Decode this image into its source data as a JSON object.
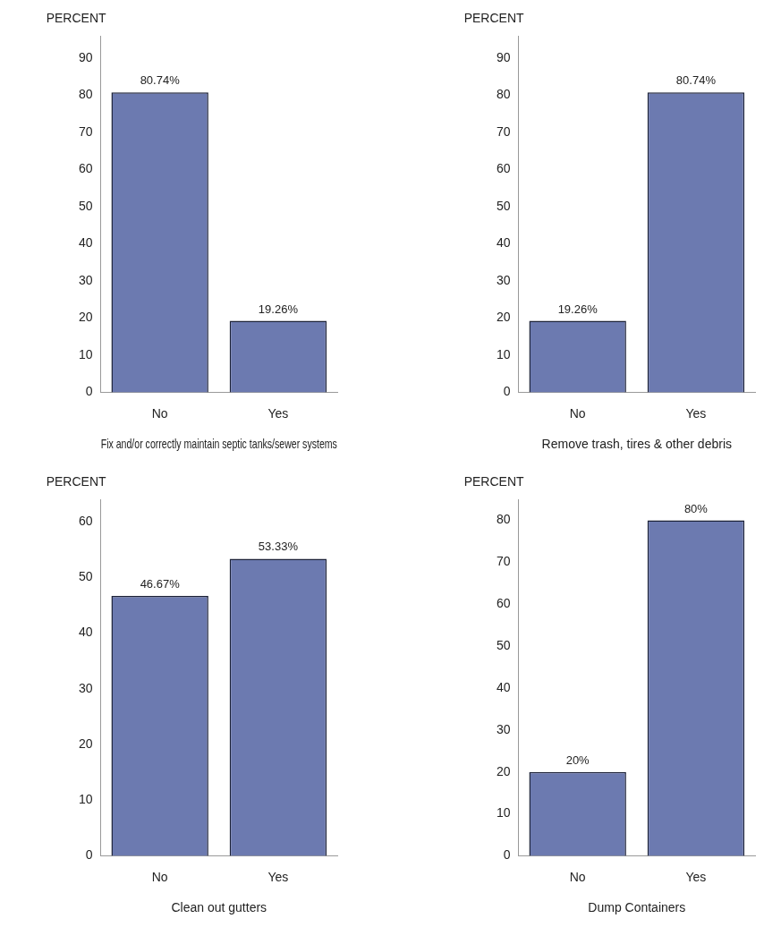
{
  "chart_data": [
    {
      "type": "bar",
      "ylabel": "PERCENT",
      "xlabel": "Fix and/or correctly maintain septic tanks/sewer systems",
      "categories": [
        "No",
        "Yes"
      ],
      "values": [
        80.74,
        19.26
      ],
      "value_labels": [
        "80.74%",
        "19.26%"
      ],
      "color": "#6c7ab0",
      "ylim": [
        0,
        96
      ],
      "yticks": [
        0,
        10,
        20,
        30,
        40,
        50,
        60,
        70,
        80,
        90
      ]
    },
    {
      "type": "bar",
      "ylabel": "PERCENT",
      "xlabel": "Remove trash, tires & other debris",
      "categories": [
        "No",
        "Yes"
      ],
      "values": [
        19.26,
        80.74
      ],
      "value_labels": [
        "19.26%",
        "80.74%"
      ],
      "color": "#6c7ab0",
      "ylim": [
        0,
        96
      ],
      "yticks": [
        0,
        10,
        20,
        30,
        40,
        50,
        60,
        70,
        80,
        90
      ]
    },
    {
      "type": "bar",
      "ylabel": "PERCENT",
      "xlabel": "Clean out gutters",
      "categories": [
        "No",
        "Yes"
      ],
      "values": [
        46.67,
        53.33
      ],
      "value_labels": [
        "46.67%",
        "53.33%"
      ],
      "color": "#6c7ab0",
      "ylim": [
        0,
        64
      ],
      "yticks": [
        0,
        10,
        20,
        30,
        40,
        50,
        60
      ]
    },
    {
      "type": "bar",
      "ylabel": "PERCENT",
      "xlabel": "Dump Containers",
      "categories": [
        "No",
        "Yes"
      ],
      "values": [
        20,
        80
      ],
      "value_labels": [
        "20%",
        "80%"
      ],
      "color": "#6c7ab0",
      "ylim": [
        0,
        85
      ],
      "yticks": [
        0,
        10,
        20,
        30,
        40,
        50,
        60,
        70,
        80
      ]
    }
  ]
}
